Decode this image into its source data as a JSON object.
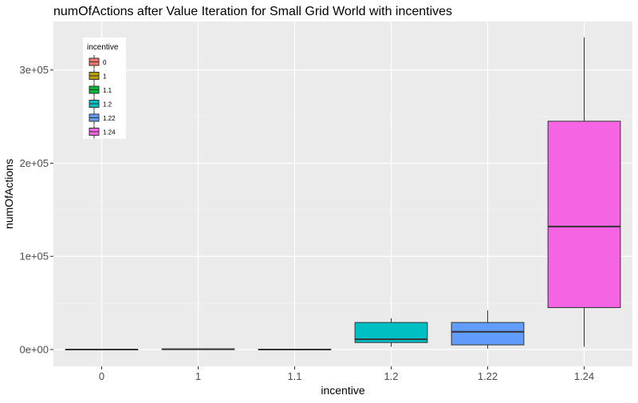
{
  "chart_data": {
    "type": "box",
    "title": "numOfActions after Value Iteration for Small Grid World with incentives",
    "xlabel": "incentive",
    "ylabel": "numOfActions",
    "categories": [
      "0",
      "1",
      "1.1",
      "1.2",
      "1.22",
      "1.24"
    ],
    "yticks": [
      {
        "value": 0,
        "label": "0e+00"
      },
      {
        "value": 100000,
        "label": "1e+05"
      },
      {
        "value": 200000,
        "label": "2e+05"
      },
      {
        "value": 300000,
        "label": "3e+05"
      }
    ],
    "ylim": [
      -18000,
      352000
    ],
    "grid": true,
    "series": [
      {
        "category": "0",
        "min": 0,
        "q1": 0,
        "median": 0,
        "q3": 0,
        "max": 0,
        "color": "#F8766D"
      },
      {
        "category": "1",
        "min": 0,
        "q1": 0,
        "median": 300,
        "q3": 600,
        "max": 1000,
        "color": "#B79F00"
      },
      {
        "category": "1.1",
        "min": 0,
        "q1": 0,
        "median": 0,
        "q3": 300,
        "max": 500,
        "color": "#00BA38"
      },
      {
        "category": "1.2",
        "min": 3000,
        "q1": 7500,
        "median": 11000,
        "q3": 29000,
        "max": 33500,
        "color": "#00BFC4"
      },
      {
        "category": "1.22",
        "min": 1000,
        "q1": 5000,
        "median": 19000,
        "q3": 29000,
        "max": 42000,
        "color": "#619CFF"
      },
      {
        "category": "1.24",
        "min": 3000,
        "q1": 45000,
        "median": 132000,
        "q3": 245000,
        "max": 335000,
        "color": "#F564E3"
      }
    ],
    "legend": {
      "title": "incentive",
      "position": "top-left",
      "entries": [
        "0",
        "1",
        "1.1",
        "1.2",
        "1.22",
        "1.24"
      ]
    }
  }
}
